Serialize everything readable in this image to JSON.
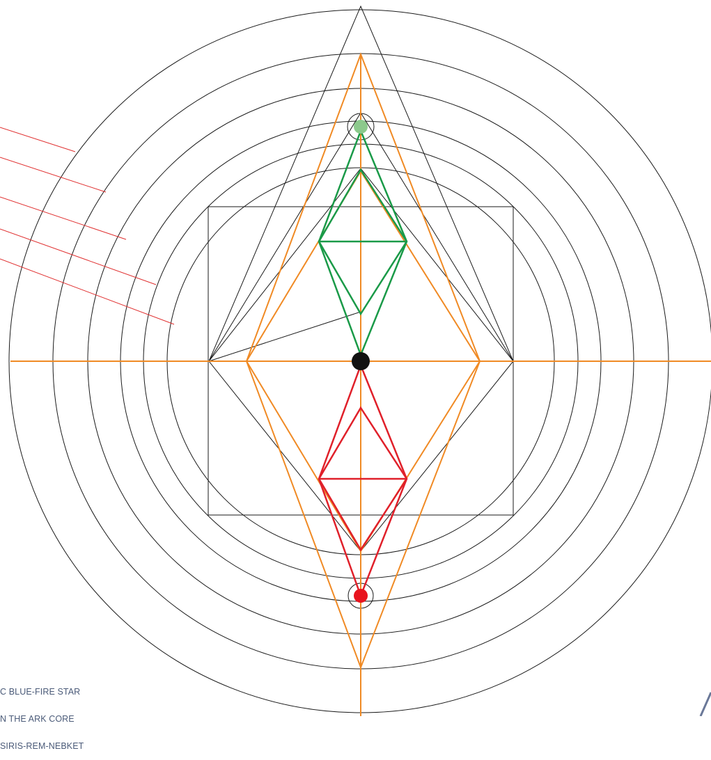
{
  "caption": {
    "line1": "C BLUE-FIRE STAR",
    "line2": "N THE ARK CORE",
    "line3": "SIRIS-REM-NEBKET"
  },
  "colors": {
    "background": "#ffffff",
    "rings": "#1a1a1a",
    "orange": "#f08a24",
    "green": "#1a9a48",
    "red": "#e0202a",
    "pointer_lines": "#e03030",
    "green_node": "#8cc98c",
    "red_node": "#e8141e",
    "center_node": "#111111",
    "caption_text": "#4a5a78",
    "corner_mark": "#6a7898"
  },
  "nodes": [
    "top-green-node",
    "center-black-node",
    "bottom-red-node"
  ]
}
